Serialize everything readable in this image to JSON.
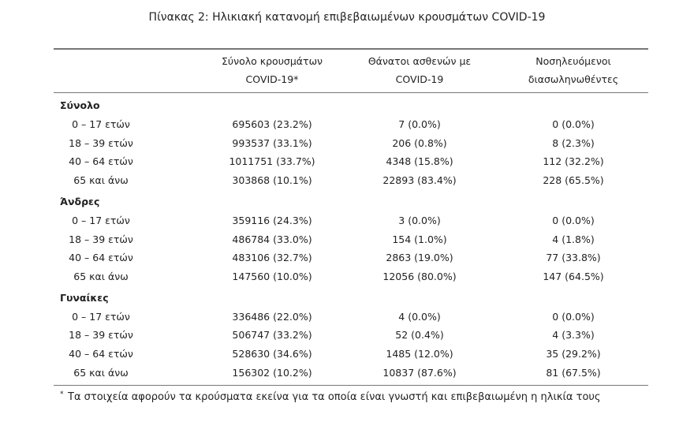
{
  "title": "Πίνακας 2: Ηλικιακή κατανομή επιβεβαιωμένων κρουσμάτων COVID-19",
  "table": {
    "header": [
      [
        "Σύνολο κρουσμάτων",
        "COVID-19*"
      ],
      [
        "Θάνατοι ασθενών με",
        "COVID-19"
      ],
      [
        "Νοσηλευόμενοι",
        "διασωληνωθέντες"
      ]
    ],
    "groups": [
      {
        "label": "Σύνολο",
        "rows": [
          [
            "0 – 17 ετών",
            "695603 (23.2%)",
            "7 (0.0%)",
            "0 (0.0%)"
          ],
          [
            "18 – 39 ετών",
            "993537 (33.1%)",
            "206 (0.8%)",
            "8 (2.3%)"
          ],
          [
            "40 – 64 ετών",
            "1011751 (33.7%)",
            "4348 (15.8%)",
            "112 (32.2%)"
          ],
          [
            "65 και άνω",
            "303868 (10.1%)",
            "22893 (83.4%)",
            "228 (65.5%)"
          ]
        ]
      },
      {
        "label": "Άνδρες",
        "rows": [
          [
            "0 – 17 ετών",
            "359116 (24.3%)",
            "3 (0.0%)",
            "0 (0.0%)"
          ],
          [
            "18 – 39 ετών",
            "486784 (33.0%)",
            "154 (1.0%)",
            "4 (1.8%)"
          ],
          [
            "40 – 64 ετών",
            "483106 (32.7%)",
            "2863 (19.0%)",
            "77 (33.8%)"
          ],
          [
            "65 και άνω",
            "147560 (10.0%)",
            "12056 (80.0%)",
            "147 (64.5%)"
          ]
        ]
      },
      {
        "label": "Γυναίκες",
        "rows": [
          [
            "0 – 17 ετών",
            "336486 (22.0%)",
            "4 (0.0%)",
            "0 (0.0%)"
          ],
          [
            "18 – 39 ετών",
            "506747 (33.2%)",
            "52 (0.4%)",
            "4 (3.3%)"
          ],
          [
            "40 – 64 ετών",
            "528630 (34.6%)",
            "1485 (12.0%)",
            "35 (29.2%)"
          ],
          [
            "65 και άνω",
            "156302 (10.2%)",
            "10837 (87.6%)",
            "81 (67.5%)"
          ]
        ]
      }
    ]
  },
  "footnote": {
    "marker": "*",
    "text": "Τα στοιχεία αφορούν τα κρούσματα εκείνα για τα οποία είναι γνωστή και επιβεβαιωμένη η ηλικία τους"
  }
}
